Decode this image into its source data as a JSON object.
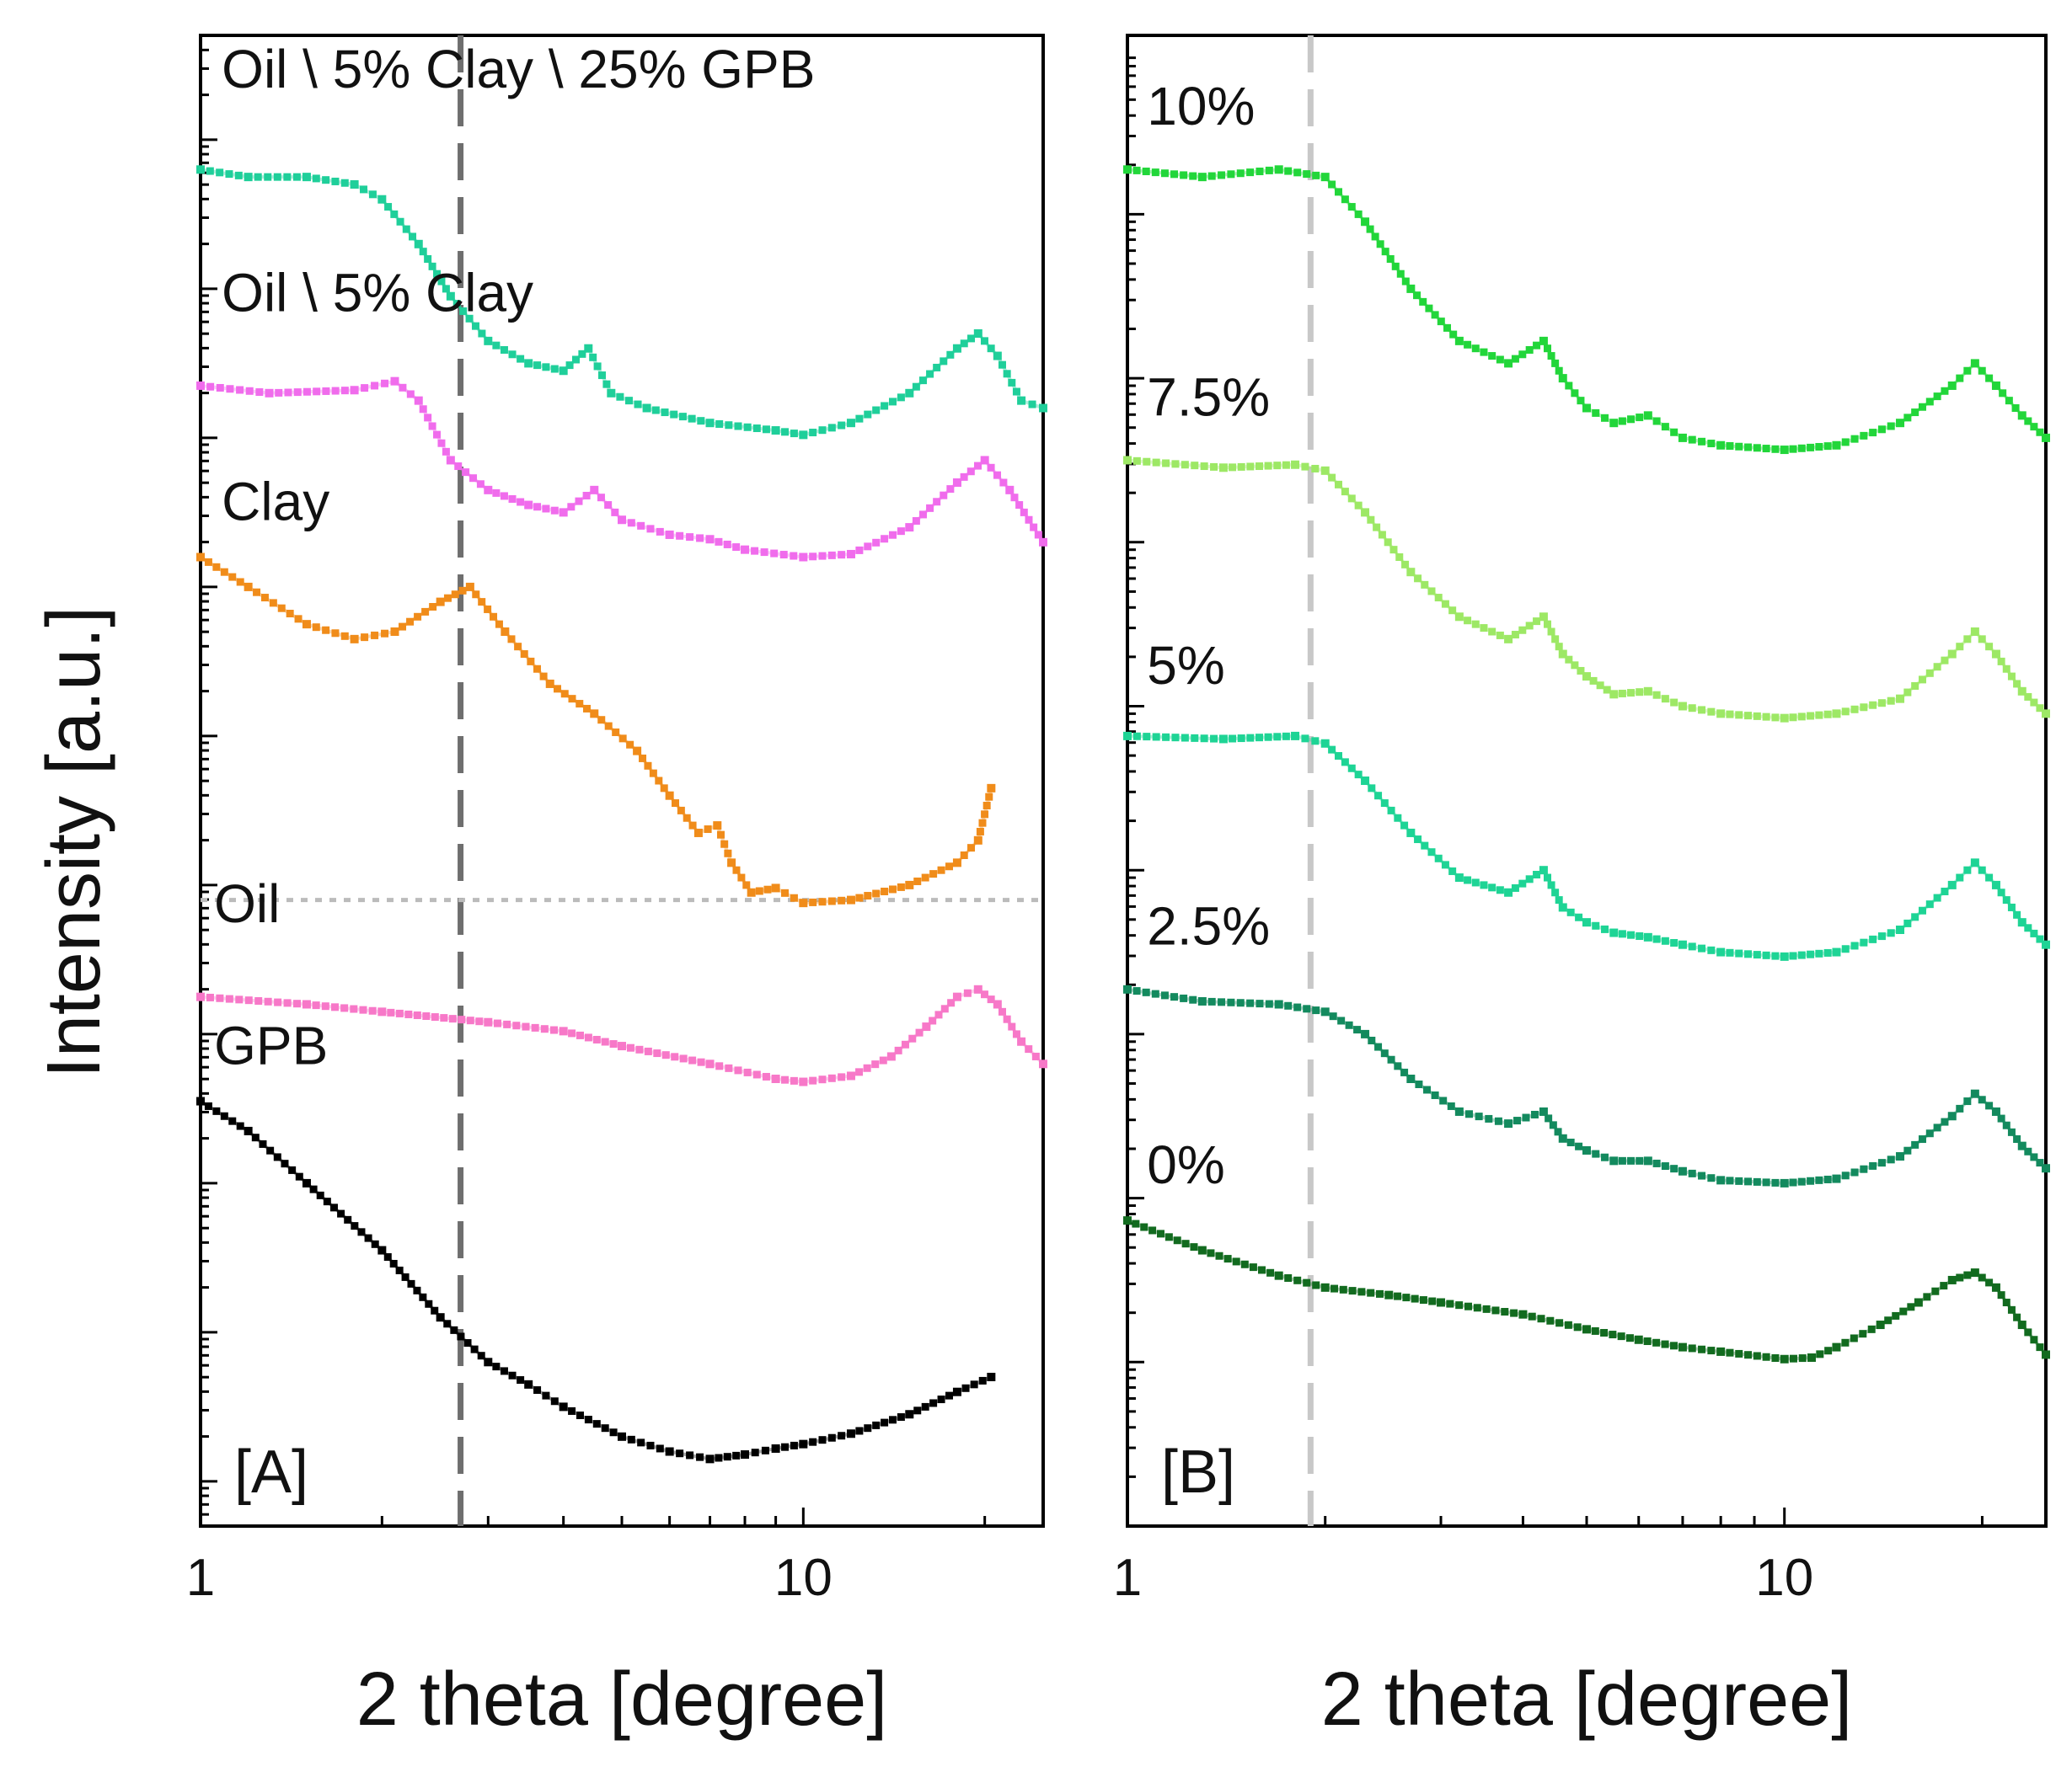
{
  "figure": {
    "ylabel": "Intensity [a.u.]"
  },
  "chart_data": [
    {
      "type": "scatter",
      "panel_label": "[A]",
      "xlabel": "2 theta [degree]",
      "ylabel": "Intensity [a.u.]",
      "xscale": "log",
      "xlim": [
        1,
        25
      ],
      "ylim": [
        0,
        10
      ],
      "x_ticks": [
        1,
        10
      ],
      "x_tick_labels": [
        "1",
        "10"
      ],
      "y_ticks": [
        0.3,
        1.3,
        2.3,
        3.3,
        4.3,
        5.3,
        6.3,
        7.3,
        8.3,
        9.3
      ],
      "reference_lines": [
        {
          "orientation": "vertical",
          "x": 2.7,
          "style": "dashed",
          "color": "#6e6e6e"
        },
        {
          "orientation": "horizontal",
          "y": 4.2,
          "style": "dotted",
          "color": "#bbbbbb"
        }
      ],
      "annotations": [
        {
          "text": "Oil \\ 5% Clay \\ 25% GPB",
          "x": 1.05,
          "y": 9.65
        },
        {
          "text": "Oil \\ 5% Clay",
          "x": 1.05,
          "y": 8.15
        },
        {
          "text": "Clay",
          "x": 1.05,
          "y": 6.75
        },
        {
          "text": "Oil",
          "x": 1.02,
          "y": 4.05
        },
        {
          "text": "GPB",
          "x": 1.02,
          "y": 3.1
        }
      ],
      "series": [
        {
          "name": "Oil \\ 5% Clay \\ 25% GPB",
          "color": "#1fcf9a",
          "x": [
            1,
            1.2,
            1.5,
            1.8,
            2,
            2.3,
            2.6,
            3,
            3.5,
            4,
            4.4,
            4.8,
            5.5,
            7,
            9,
            10,
            12,
            15,
            18,
            19.5,
            21,
            23,
            25
          ],
          "y": [
            9.1,
            9.05,
            9.05,
            9.0,
            8.9,
            8.6,
            8.25,
            7.95,
            7.8,
            7.75,
            7.9,
            7.6,
            7.5,
            7.4,
            7.35,
            7.32,
            7.4,
            7.6,
            7.9,
            8.0,
            7.85,
            7.55,
            7.5
          ]
        },
        {
          "name": "Oil \\ 5% Clay",
          "color": "#f06cec",
          "x": [
            1,
            1.3,
            1.8,
            2.1,
            2.3,
            2.6,
            3,
            3.5,
            4,
            4.5,
            5,
            6,
            7,
            8,
            10,
            12,
            15,
            18,
            20,
            22,
            25
          ],
          "y": [
            7.65,
            7.6,
            7.62,
            7.68,
            7.55,
            7.15,
            6.95,
            6.85,
            6.8,
            6.95,
            6.75,
            6.65,
            6.62,
            6.55,
            6.5,
            6.52,
            6.7,
            7.0,
            7.15,
            6.95,
            6.6
          ]
        },
        {
          "name": "Clay",
          "color": "#f08c1a",
          "x": [
            1,
            1.2,
            1.5,
            1.8,
            2.1,
            2.5,
            2.8,
            3.2,
            3.8,
            4.5,
            5.3,
            6,
            6.7,
            7.2,
            7.6,
            8.2,
            9,
            10,
            12,
            15,
            18,
            19.5,
            20.5
          ],
          "y": [
            6.5,
            6.3,
            6.05,
            5.95,
            6.0,
            6.2,
            6.3,
            6.0,
            5.65,
            5.45,
            5.2,
            4.9,
            4.65,
            4.7,
            4.45,
            4.25,
            4.28,
            4.18,
            4.2,
            4.3,
            4.45,
            4.6,
            4.95
          ]
        },
        {
          "name": "Oil",
          "color": "#f778c8",
          "x": [
            1,
            1.5,
            2,
            3,
            4,
            5,
            7,
            9,
            10,
            12,
            14,
            16,
            18,
            19.5,
            21,
            23,
            25
          ],
          "y": [
            3.55,
            3.5,
            3.45,
            3.38,
            3.32,
            3.22,
            3.1,
            3.0,
            2.98,
            3.02,
            3.15,
            3.35,
            3.55,
            3.6,
            3.5,
            3.25,
            3.1
          ]
        },
        {
          "name": "GPB",
          "color": "#000000",
          "x": [
            1,
            1.2,
            1.5,
            2,
            2.5,
            3,
            3.5,
            4,
            5,
            6,
            7,
            8,
            9,
            10,
            12,
            15,
            18,
            20.5
          ],
          "y": [
            2.85,
            2.65,
            2.3,
            1.85,
            1.4,
            1.1,
            0.95,
            0.8,
            0.6,
            0.5,
            0.45,
            0.48,
            0.52,
            0.55,
            0.62,
            0.75,
            0.9,
            1.0
          ]
        }
      ]
    },
    {
      "type": "scatter",
      "panel_label": "[B]",
      "xlabel": "2 theta [degree]",
      "ylabel": "Intensity [a.u.]",
      "xscale": "log",
      "xlim": [
        1,
        25
      ],
      "ylim": [
        0,
        10
      ],
      "x_ticks": [
        1,
        10
      ],
      "x_tick_labels": [
        "1",
        "10"
      ],
      "y_ticks": [
        1.1,
        2.2,
        3.3,
        4.4,
        5.5,
        6.6,
        7.7,
        8.8
      ],
      "reference_lines": [
        {
          "orientation": "vertical",
          "x": 1.9,
          "style": "dashed",
          "color": "#c8c8c8"
        }
      ],
      "annotations": [
        {
          "text": "10%",
          "x": 1.04,
          "y": 9.4
        },
        {
          "text": "7.5%",
          "x": 1.04,
          "y": 7.45
        },
        {
          "text": "5%",
          "x": 1.04,
          "y": 5.65
        },
        {
          "text": "2.5%",
          "x": 1.04,
          "y": 3.9
        },
        {
          "text": "0%",
          "x": 1.04,
          "y": 2.3
        }
      ],
      "series": [
        {
          "name": "10%",
          "color": "#22d63a",
          "x": [
            1,
            1.3,
            1.7,
            2,
            2.3,
            2.7,
            3.2,
            3.8,
            4.3,
            4.6,
            5,
            5.5,
            6.2,
            7,
            8,
            10,
            12,
            15,
            18,
            19.5,
            21,
            23,
            25
          ],
          "y": [
            9.1,
            9.05,
            9.1,
            9.05,
            8.75,
            8.3,
            7.95,
            7.8,
            7.95,
            7.7,
            7.5,
            7.4,
            7.45,
            7.3,
            7.25,
            7.22,
            7.25,
            7.4,
            7.65,
            7.8,
            7.65,
            7.45,
            7.3
          ]
        },
        {
          "name": "7.5%",
          "color": "#9de865",
          "x": [
            1,
            1.4,
            1.8,
            2,
            2.3,
            2.7,
            3.2,
            3.8,
            4.3,
            4.6,
            5,
            5.5,
            6.2,
            7,
            8,
            10,
            12,
            15,
            18,
            19.5,
            21,
            23,
            25
          ],
          "y": [
            7.15,
            7.1,
            7.12,
            7.08,
            6.8,
            6.4,
            6.1,
            5.95,
            6.1,
            5.85,
            5.7,
            5.58,
            5.6,
            5.5,
            5.45,
            5.42,
            5.45,
            5.55,
            5.85,
            6.0,
            5.85,
            5.6,
            5.45
          ]
        },
        {
          "name": "5%",
          "color": "#1ed495",
          "x": [
            1,
            1.4,
            1.8,
            2,
            2.3,
            2.7,
            3.2,
            3.8,
            4.3,
            4.6,
            5,
            5.5,
            6.2,
            7,
            8,
            10,
            12,
            15,
            18,
            19.5,
            21,
            23,
            25
          ],
          "y": [
            5.3,
            5.28,
            5.3,
            5.25,
            5.0,
            4.65,
            4.35,
            4.25,
            4.4,
            4.15,
            4.05,
            3.98,
            3.95,
            3.9,
            3.85,
            3.82,
            3.85,
            4.0,
            4.3,
            4.45,
            4.3,
            4.05,
            3.9
          ]
        },
        {
          "name": "2.5%",
          "color": "#138a5e",
          "x": [
            1,
            1.3,
            1.7,
            2,
            2.3,
            2.7,
            3.2,
            3.8,
            4.3,
            4.6,
            5,
            5.5,
            6.2,
            7,
            8,
            10,
            12,
            15,
            18,
            19.5,
            21,
            23,
            25
          ],
          "y": [
            3.6,
            3.52,
            3.5,
            3.45,
            3.3,
            3.0,
            2.78,
            2.7,
            2.78,
            2.6,
            2.52,
            2.45,
            2.45,
            2.38,
            2.32,
            2.3,
            2.33,
            2.48,
            2.75,
            2.9,
            2.78,
            2.55,
            2.4
          ]
        },
        {
          "name": "0%",
          "color": "#126b1f",
          "x": [
            1,
            1.3,
            1.7,
            2,
            2.5,
            3,
            4,
            5,
            6,
            7,
            8,
            10,
            11,
            12,
            14,
            16,
            18,
            19.5,
            21,
            23,
            25
          ],
          "y": [
            2.05,
            1.85,
            1.68,
            1.6,
            1.55,
            1.5,
            1.42,
            1.32,
            1.25,
            1.2,
            1.17,
            1.12,
            1.13,
            1.2,
            1.35,
            1.5,
            1.65,
            1.7,
            1.6,
            1.35,
            1.15
          ]
        }
      ]
    }
  ]
}
